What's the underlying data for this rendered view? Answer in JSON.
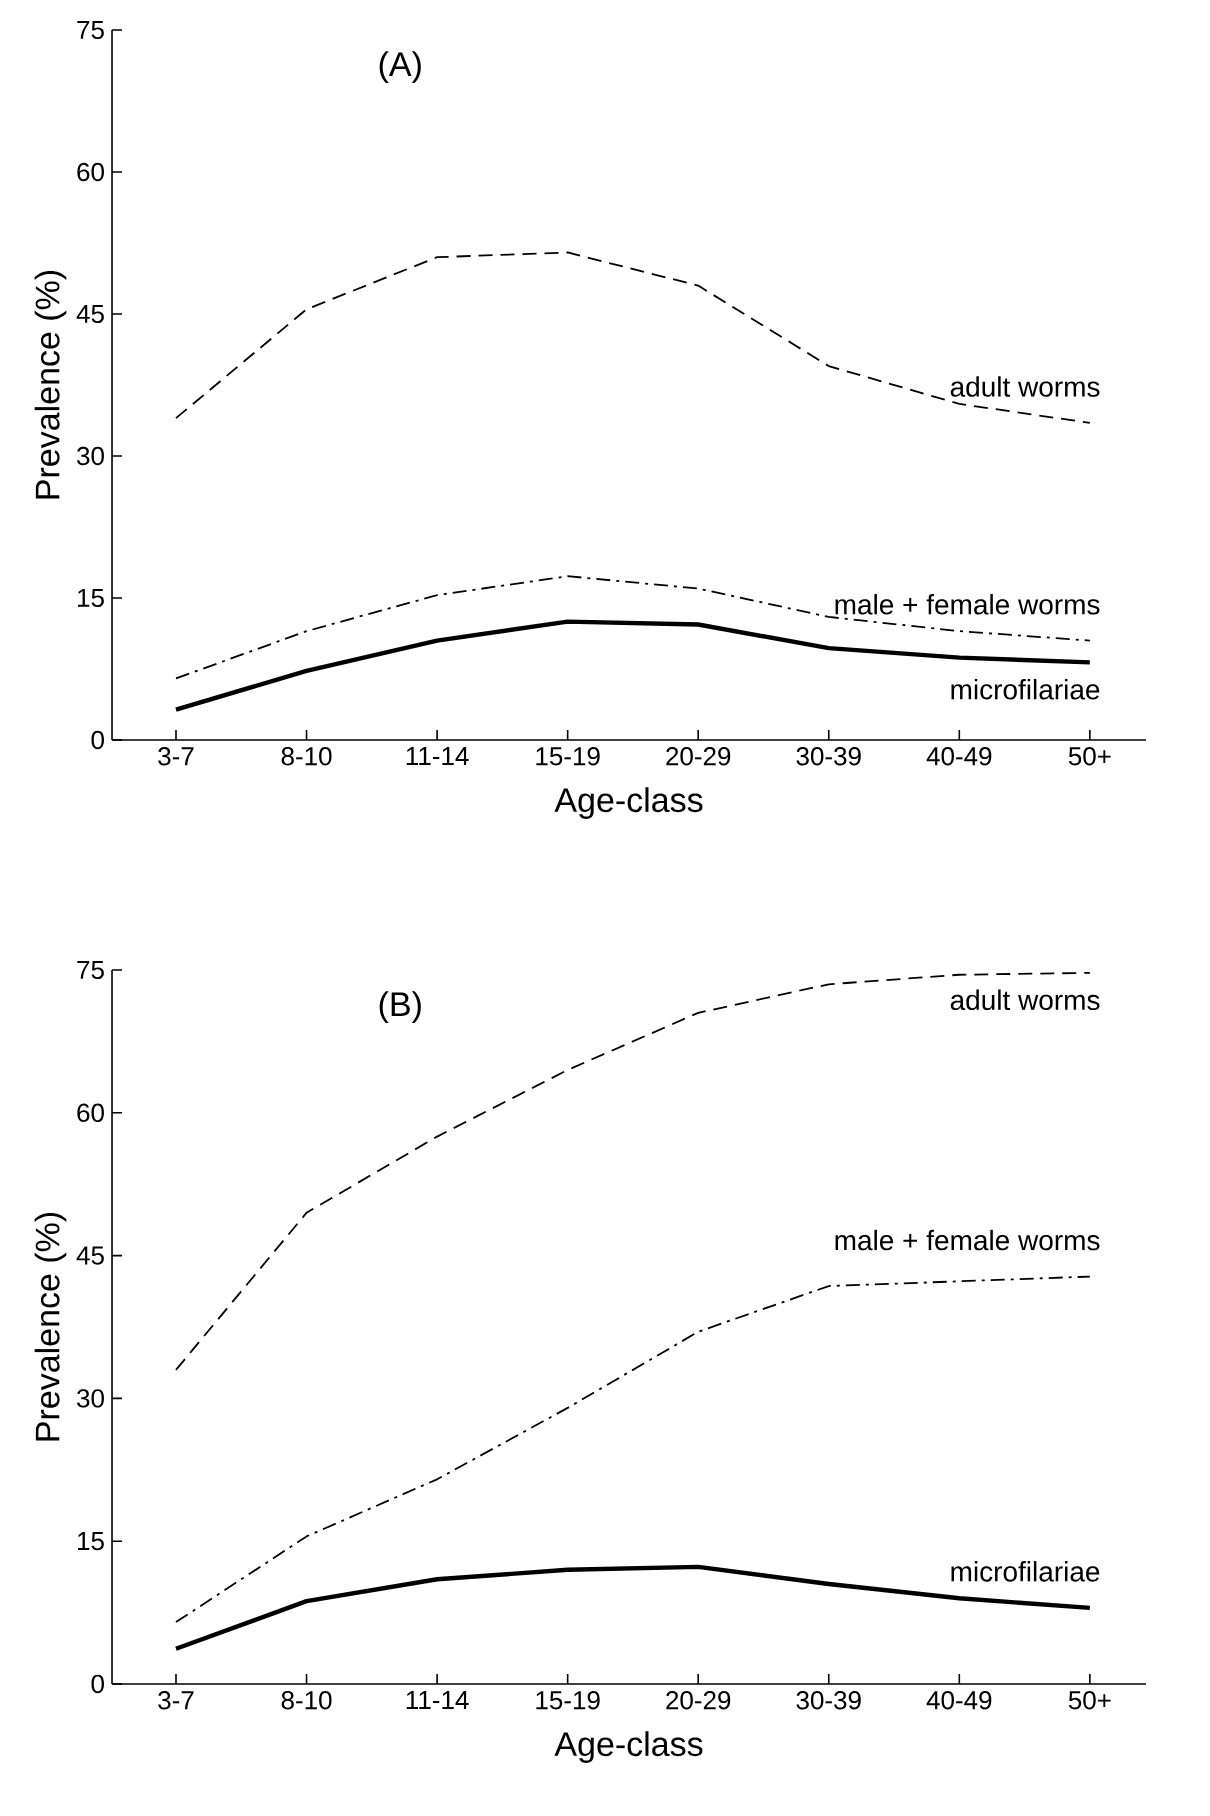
{
  "chart_data": [
    {
      "type": "line",
      "xlabel": "Age-class",
      "ylabel": "Prevalence (%)",
      "annotations": [
        "(A)"
      ],
      "categories": [
        "3-7",
        "8-10",
        "11-14",
        "15-19",
        "20-29",
        "30-39",
        "40-49",
        "50+"
      ],
      "ylim": [
        0,
        75
      ],
      "yticks": [
        0,
        15,
        30,
        45,
        60,
        75
      ],
      "grid": false,
      "legend": false,
      "marker": "none",
      "series": [
        {
          "name": "adult worms",
          "color": "#000000",
          "line_style": "dashed",
          "values": [
            34,
            45.5,
            51,
            51.5,
            48,
            39.5,
            35.5,
            33.5
          ]
        },
        {
          "name": "male + female worms",
          "color": "#000000",
          "line_style": "dashdot",
          "values": [
            6.5,
            11.5,
            15.3,
            17.3,
            16,
            13,
            11.5,
            10.5
          ]
        },
        {
          "name": "microfilariae",
          "color": "#000000",
          "line_style": "solid",
          "values": [
            3.2,
            7.3,
            10.5,
            12.5,
            12.2,
            9.7,
            8.7,
            8.2
          ]
        }
      ]
    },
    {
      "type": "line",
      "xlabel": "Age-class",
      "ylabel": "Prevalence (%)",
      "annotations": [
        "(B)"
      ],
      "categories": [
        "3-7",
        "8-10",
        "11-14",
        "15-19",
        "20-29",
        "30-39",
        "40-49",
        "50+"
      ],
      "ylim": [
        0,
        75
      ],
      "yticks": [
        0,
        15,
        30,
        45,
        60,
        75
      ],
      "grid": false,
      "legend": false,
      "marker": "none",
      "series": [
        {
          "name": "adult worms",
          "color": "#000000",
          "line_style": "dashed",
          "values": [
            33,
            49.5,
            57.5,
            64.5,
            70.5,
            73.5,
            74.5,
            74.7
          ]
        },
        {
          "name": "male + female worms",
          "color": "#000000",
          "line_style": "dashdot",
          "values": [
            6.5,
            15.5,
            21.5,
            29,
            37,
            41.8,
            42.3,
            42.8
          ]
        },
        {
          "name": "microfilariae",
          "color": "#000000",
          "line_style": "solid",
          "values": [
            3.7,
            8.7,
            11,
            12,
            12.3,
            10.5,
            9,
            8
          ]
        }
      ]
    }
  ]
}
